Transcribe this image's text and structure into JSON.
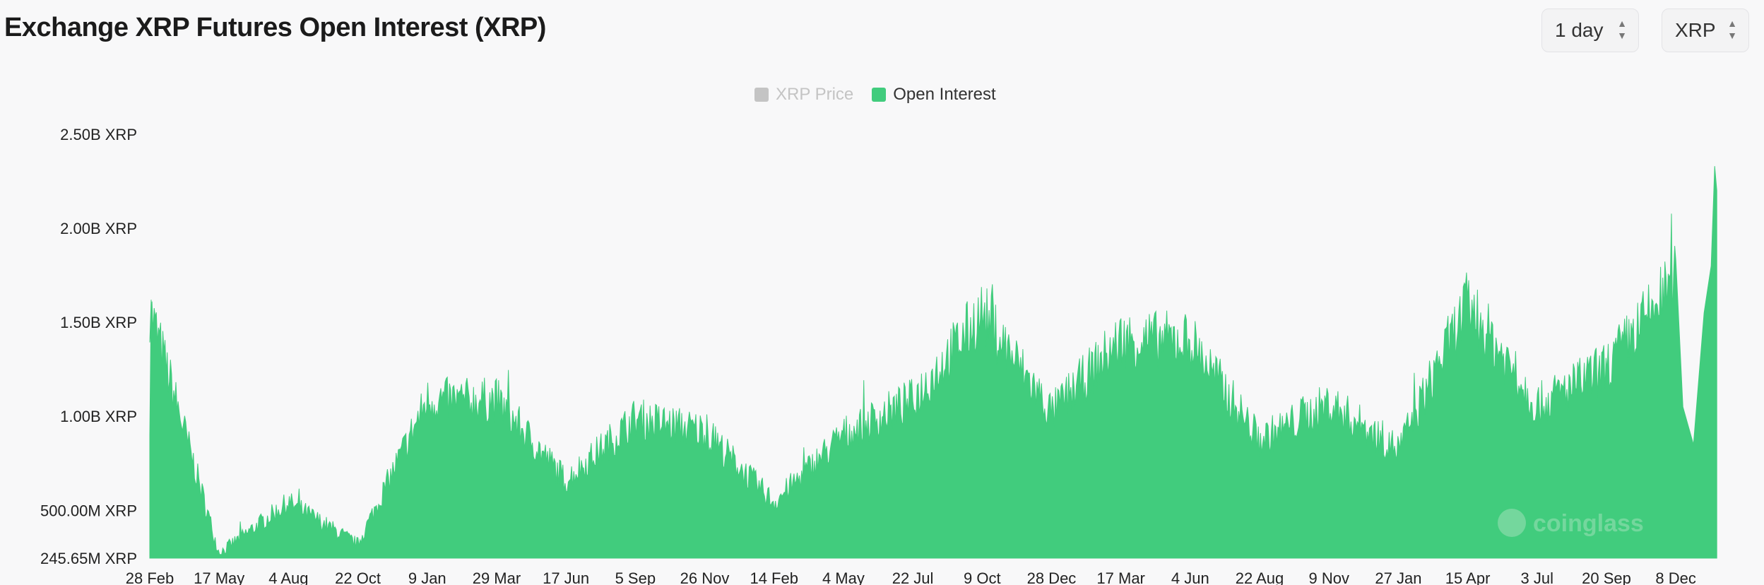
{
  "header": {
    "title": "Exchange XRP Futures Open Interest (XRP)",
    "interval_select": "1 day",
    "unit_select": "XRP"
  },
  "legend": [
    {
      "label": "XRP Price",
      "color": "#c4c4c4",
      "disabled": true
    },
    {
      "label": "Open Interest",
      "color": "#41cc7d",
      "disabled": false
    }
  ],
  "watermark": "coinglass",
  "chart_data": {
    "type": "area",
    "title": "Exchange XRP Futures Open Interest (XRP)",
    "series": [
      {
        "name": "Open Interest",
        "color": "#41cc7d",
        "x": [
          "28 Feb",
          "17 May",
          "4 Aug",
          "22 Oct",
          "9 Jan",
          "29 Mar",
          "17 Jun",
          "5 Sep",
          "26 Nov",
          "14 Feb",
          "4 May",
          "22 Jul",
          "9 Oct",
          "28 Dec",
          "17 Mar",
          "4 Jun",
          "22 Aug",
          "9 Nov",
          "27 Jan",
          "15 Apr",
          "3 Jul",
          "20 Sep",
          "8 Dec"
        ],
        "values_b": [
          1.62,
          0.28,
          0.56,
          0.33,
          1.12,
          1.12,
          0.68,
          1.02,
          0.95,
          0.56,
          0.93,
          1.12,
          1.6,
          1.05,
          1.45,
          1.45,
          0.9,
          1.1,
          0.85,
          1.65,
          1.09,
          1.3,
          1.78
        ],
        "end_peak_b": 2.33
      }
    ],
    "y_ticks": [
      "245.65M XRP",
      "500.00M XRP",
      "1.00B XRP",
      "1.50B XRP",
      "2.00B XRP",
      "2.50B XRP"
    ],
    "y_tick_values": [
      245650000,
      500000000,
      1000000000,
      1500000000,
      2000000000,
      2500000000
    ],
    "ylim": [
      245650000,
      2500000000
    ],
    "x_ticks": [
      "28 Feb",
      "17 May",
      "4 Aug",
      "22 Oct",
      "9 Jan",
      "29 Mar",
      "17 Jun",
      "5 Sep",
      "26 Nov",
      "14 Feb",
      "4 May",
      "22 Jul",
      "9 Oct",
      "28 Dec",
      "17 Mar",
      "4 Jun",
      "22 Aug",
      "9 Nov",
      "27 Jan",
      "15 Apr",
      "3 Jul",
      "20 Sep",
      "8 Dec"
    ],
    "grid": false,
    "legend_position": "top-center"
  }
}
